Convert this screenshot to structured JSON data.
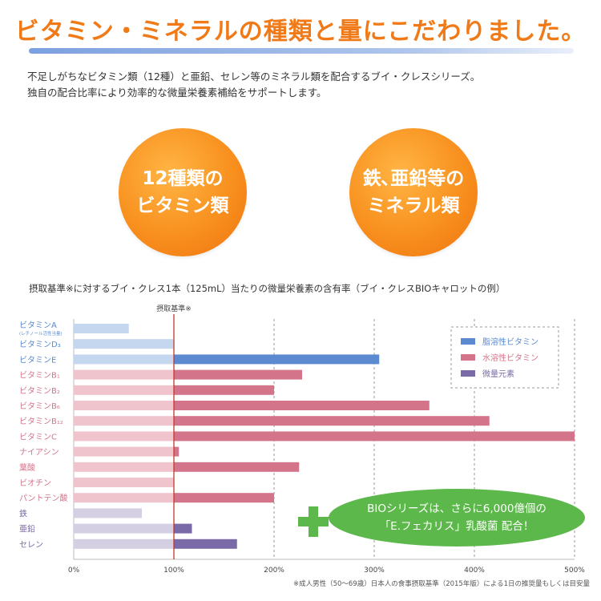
{
  "headline": "ビタミン・ミネラルの種類と量にこだわりました。",
  "intro": [
    "不足しがちなビタミン類（12種）と亜鉛、セレン等のミネラル類を配合するブイ・クレスシリーズ。",
    "独自の配合比率により効率的な微量栄養素補給をサポートします。"
  ],
  "circles": [
    {
      "line1": "12種類の",
      "line2": "ビタミン類"
    },
    {
      "line1": "鉄､亜鉛等の",
      "line2": "ミネラル類"
    }
  ],
  "chart_title": "摂取基準※に対するブイ・クレス1本（125mL）当たりの微量栄養素の含有率（ブイ・クレスBIOキャロットの例）",
  "callout": {
    "line1": "BIOシリーズは、さらに6,000億個の",
    "line2": "「E.フェカリス」乳酸菌 配合！"
  },
  "footnote": "※成人男性（50〜69歳）日本人の食事摂取基準（2015年版）による1日の推奨量もしくは目安量",
  "colors": {
    "fat": "#5b8ad0",
    "water": "#d4748a",
    "mineral": "#7b6aa8",
    "fat_light": "#c5d6ef",
    "water_light": "#efc4cc",
    "mineral_light": "#d5cfe3",
    "ref_line": "#c0392b"
  },
  "chart_data": {
    "type": "bar",
    "orientation": "horizontal",
    "title": "摂取基準※に対するブイ・クレス1本（125mL）当たりの微量栄養素の含有率（ブイ・クレスBIOキャロットの例）",
    "reference_label": "摂取基準※",
    "reference_value": 100,
    "xlim": [
      0,
      500
    ],
    "xticks": [
      "0%",
      "100%",
      "200%",
      "300%",
      "400%",
      "500%"
    ],
    "grid": true,
    "legend_position": "top-right",
    "legend": [
      {
        "name": "脂溶性ビタミン",
        "key": "fat"
      },
      {
        "name": "水溶性ビタミン",
        "key": "water"
      },
      {
        "name": "微量元素",
        "key": "mineral"
      }
    ],
    "categories": [
      {
        "label": "ビタミンA",
        "sub": "(レチノール活性当量)",
        "group": "fat",
        "value": 55
      },
      {
        "label": "ビタミンD₃",
        "group": "fat",
        "value": 100
      },
      {
        "label": "ビタミンE",
        "group": "fat",
        "value": 305
      },
      {
        "label": "ビタミンB₁",
        "group": "water",
        "value": 228
      },
      {
        "label": "ビタミンB₂",
        "group": "water",
        "value": 200
      },
      {
        "label": "ビタミンB₆",
        "group": "water",
        "value": 355
      },
      {
        "label": "ビタミンB₁₂",
        "group": "water",
        "value": 415
      },
      {
        "label": "ビタミンC",
        "group": "water",
        "value": 500
      },
      {
        "label": "ナイアシン",
        "group": "water",
        "value": 105
      },
      {
        "label": "葉酸",
        "group": "water",
        "value": 225
      },
      {
        "label": "ビオチン",
        "group": "water",
        "value": 100
      },
      {
        "label": "パントテン酸",
        "group": "water",
        "value": 200
      },
      {
        "label": "鉄",
        "group": "mineral",
        "value": 68
      },
      {
        "label": "亜鉛",
        "group": "mineral",
        "value": 118
      },
      {
        "label": "セレン",
        "group": "mineral",
        "value": 163
      }
    ]
  }
}
